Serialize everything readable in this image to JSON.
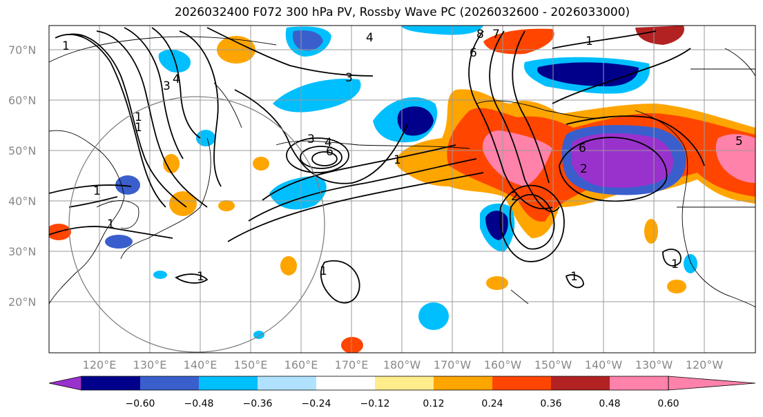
{
  "title": "2026032400 F072 300 hPa PV, Rossby Wave PC (2026032600 - 2026033000)",
  "map": {
    "lat_labels": [
      "70°N",
      "60°N",
      "50°N",
      "40°N",
      "30°N",
      "20°N"
    ],
    "lon_labels": [
      "120°E",
      "130°E",
      "140°E",
      "150°E",
      "160°E",
      "170°E",
      "180°W",
      "170°W",
      "160°W",
      "150°W",
      "140°W",
      "130°W",
      "120°W"
    ],
    "contour_labels": [
      "1",
      "2",
      "3",
      "4",
      "6",
      "8",
      "7",
      "1",
      "1",
      "3",
      "4",
      "6",
      "1",
      "1",
      "1",
      "6",
      "2",
      "3",
      "4",
      "5",
      "1",
      "1",
      "1",
      "1",
      "1"
    ]
  },
  "colorbar": {
    "tick_labels": [
      "−0.60",
      "−0.48",
      "−0.36",
      "−0.24",
      "−0.12",
      "0.12",
      "0.24",
      "0.36",
      "0.48",
      "0.60"
    ],
    "colors": [
      "#9932CC",
      "#00008B",
      "#3A5FCD",
      "#00BFFF",
      "#B0E2FF",
      "#FFFFFF",
      "#FFEC8B",
      "#FFA500",
      "#FF4500",
      "#B22222",
      "#FF82AB"
    ]
  }
}
